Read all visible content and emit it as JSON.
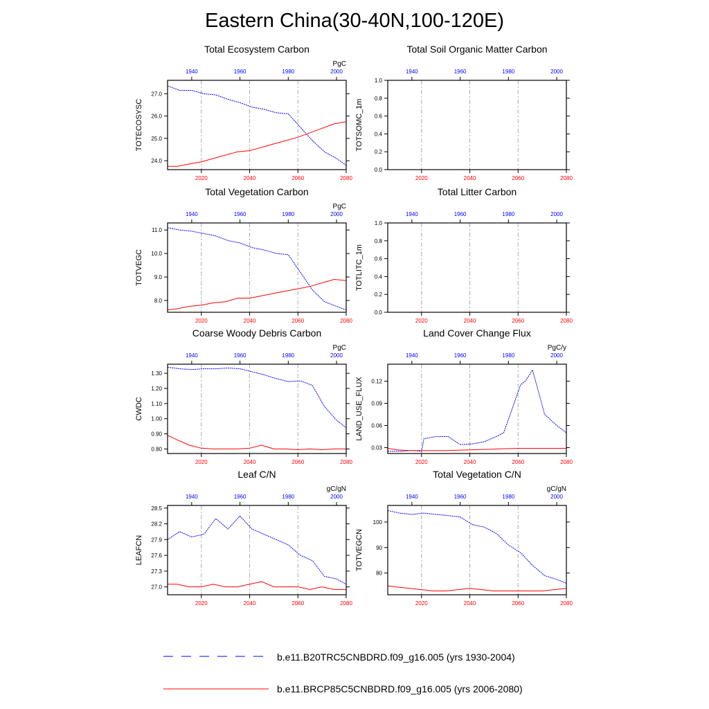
{
  "title": "Eastern China(30-40N,100-120E)",
  "colors": {
    "historical": "#0000ff",
    "future": "#ff0000",
    "axis": "#000000",
    "grid": "#aaaaaa"
  },
  "legend": [
    {
      "label": "b.e11.B20TRC5CNBDRD.f09_g16.005 (yrs 1930-2004)",
      "color": "#0000ff",
      "style": "dashed"
    },
    {
      "label": "b.e11.BRCP85C5CNBDRD.f09_g16.005 (yrs 2006-2080)",
      "color": "#ff0000",
      "style": "solid"
    }
  ],
  "chart_data": [
    {
      "type": "line",
      "title": "Total Ecosystem Carbon",
      "ylabel": "TOTECOSYSC",
      "units": "PgC",
      "ylim": [
        23.6,
        27.6
      ],
      "yticks": [
        "24.0",
        "25.0",
        "26.0",
        "27.0"
      ],
      "top_axis": {
        "range": [
          1930,
          2004
        ],
        "ticks": [
          "1940",
          "1960",
          "1980",
          "2000"
        ]
      },
      "bottom_axis": {
        "range": [
          2006,
          2080
        ],
        "ticks": [
          "2020",
          "2040",
          "2060",
          "2080"
        ]
      },
      "series": [
        {
          "name": "b.e11.B20TRC5CNBDRD.f09_g16.005 (yrs 1930-2004)",
          "axis": "top",
          "style": "dashed",
          "x": [
            1930,
            1935,
            1940,
            1945,
            1950,
            1955,
            1960,
            1965,
            1970,
            1975,
            1980,
            1985,
            1990,
            1995,
            2000,
            2004
          ],
          "values": [
            27.35,
            27.15,
            27.15,
            27.0,
            26.95,
            26.75,
            26.6,
            26.4,
            26.3,
            26.15,
            26.1,
            25.5,
            24.9,
            24.4,
            24.1,
            23.8
          ]
        },
        {
          "name": "b.e11.BRCP85C5CNBDRD.f09_g16.005 (yrs 2006-2080)",
          "axis": "bottom",
          "style": "solid",
          "x": [
            2006,
            2010,
            2015,
            2020,
            2025,
            2030,
            2035,
            2040,
            2045,
            2050,
            2055,
            2060,
            2065,
            2070,
            2075,
            2080
          ],
          "values": [
            23.75,
            23.75,
            23.85,
            23.95,
            24.1,
            24.25,
            24.4,
            24.45,
            24.6,
            24.75,
            24.9,
            25.05,
            25.25,
            25.45,
            25.65,
            25.75
          ]
        }
      ]
    },
    {
      "type": "line",
      "title": "Total Soil Organic Matter Carbon",
      "ylabel": "TOTSOMC_1m",
      "units": "",
      "ylim": [
        0,
        1
      ],
      "yticks": [
        "0.0",
        "0.2",
        "0.4",
        "0.6",
        "0.8",
        "1.0"
      ],
      "top_axis": {
        "range": [
          1930,
          2004
        ],
        "ticks": [
          "1940",
          "1960",
          "1980",
          "2000"
        ]
      },
      "bottom_axis": {
        "range": [
          2006,
          2080
        ],
        "ticks": [
          "2020",
          "2040",
          "2060",
          "2080"
        ]
      },
      "series": []
    },
    {
      "type": "line",
      "title": "Total Vegetation Carbon",
      "ylabel": "TOTVEGC",
      "units": "PgC",
      "ylim": [
        7.5,
        11.3
      ],
      "yticks": [
        "8.0",
        "9.0",
        "10.0",
        "11.0"
      ],
      "top_axis": {
        "range": [
          1930,
          2004
        ],
        "ticks": [
          "1940",
          "1960",
          "1980",
          "2000"
        ]
      },
      "bottom_axis": {
        "range": [
          2006,
          2080
        ],
        "ticks": [
          "2020",
          "2040",
          "2060",
          "2080"
        ]
      },
      "series": [
        {
          "name": "b.e11.B20TRC5CNBDRD.f09_g16.005 (yrs 1930-2004)",
          "axis": "top",
          "style": "dashed",
          "x": [
            1930,
            1935,
            1940,
            1945,
            1950,
            1955,
            1960,
            1965,
            1970,
            1975,
            1980,
            1985,
            1990,
            1995,
            2000,
            2004
          ],
          "values": [
            11.1,
            11.0,
            10.95,
            10.85,
            10.75,
            10.55,
            10.45,
            10.25,
            10.15,
            10.0,
            9.95,
            9.2,
            8.45,
            7.95,
            7.75,
            7.6
          ]
        },
        {
          "name": "b.e11.BRCP85C5CNBDRD.f09_g16.005 (yrs 2006-2080)",
          "axis": "bottom",
          "style": "solid",
          "x": [
            2006,
            2010,
            2015,
            2020,
            2025,
            2030,
            2035,
            2040,
            2045,
            2050,
            2055,
            2060,
            2065,
            2070,
            2075,
            2080
          ],
          "values": [
            7.6,
            7.65,
            7.75,
            7.8,
            7.9,
            7.95,
            8.1,
            8.1,
            8.2,
            8.3,
            8.4,
            8.5,
            8.6,
            8.75,
            8.9,
            8.85
          ]
        }
      ]
    },
    {
      "type": "line",
      "title": "Total Litter Carbon",
      "ylabel": "TOTLITC_1m",
      "units": "",
      "ylim": [
        0,
        1
      ],
      "yticks": [
        "0.0",
        "0.2",
        "0.4",
        "0.6",
        "0.8",
        "1.0"
      ],
      "top_axis": {
        "range": [
          1930,
          2004
        ],
        "ticks": [
          "1940",
          "1960",
          "1980",
          "2000"
        ]
      },
      "bottom_axis": {
        "range": [
          2006,
          2080
        ],
        "ticks": [
          "2020",
          "2040",
          "2060",
          "2080"
        ]
      },
      "series": []
    },
    {
      "type": "line",
      "title": "Coarse Woody Debris Carbon",
      "ylabel": "CWDC",
      "units": "PgC",
      "ylim": [
        0.77,
        1.36
      ],
      "yticks": [
        "0.80",
        "0.90",
        "1.00",
        "1.10",
        "1.20",
        "1.30"
      ],
      "top_axis": {
        "range": [
          1930,
          2004
        ],
        "ticks": [
          "1940",
          "1960",
          "1980",
          "2000"
        ]
      },
      "bottom_axis": {
        "range": [
          2006,
          2080
        ],
        "ticks": [
          "2020",
          "2040",
          "2060",
          "2080"
        ]
      },
      "series": [
        {
          "name": "b.e11.B20TRC5CNBDRD.f09_g16.005 (yrs 1930-2004)",
          "axis": "top",
          "style": "dashed",
          "x": [
            1930,
            1935,
            1940,
            1945,
            1950,
            1955,
            1960,
            1965,
            1970,
            1975,
            1980,
            1985,
            1990,
            1995,
            2000,
            2004
          ],
          "values": [
            1.34,
            1.33,
            1.325,
            1.33,
            1.33,
            1.335,
            1.33,
            1.31,
            1.29,
            1.265,
            1.245,
            1.25,
            1.22,
            1.08,
            0.99,
            0.94
          ]
        },
        {
          "name": "b.e11.BRCP85C5CNBDRD.f09_g16.005 (yrs 2006-2080)",
          "axis": "bottom",
          "style": "solid",
          "x": [
            2006,
            2010,
            2015,
            2020,
            2025,
            2030,
            2035,
            2040,
            2045,
            2050,
            2055,
            2060,
            2065,
            2070,
            2075,
            2080
          ],
          "values": [
            0.89,
            0.86,
            0.825,
            0.805,
            0.8,
            0.8,
            0.8,
            0.805,
            0.825,
            0.8,
            0.8,
            0.795,
            0.8,
            0.795,
            0.8,
            0.8
          ]
        }
      ]
    },
    {
      "type": "line",
      "title": "Land Cover Change Flux",
      "ylabel": "LAND_USE_FLUX",
      "units": "PgC/y",
      "ylim": [
        0.022,
        0.143
      ],
      "yticks": [
        "0.03",
        "0.06",
        "0.09",
        "0.12"
      ],
      "top_axis": {
        "range": [
          1930,
          2004
        ],
        "ticks": [
          "1940",
          "1960",
          "1980",
          "2000"
        ]
      },
      "bottom_axis": {
        "range": [
          2006,
          2080
        ],
        "ticks": [
          "2020",
          "2040",
          "2060",
          "2080"
        ]
      },
      "series": [
        {
          "name": "b.e11.B20TRC5CNBDRD.f09_g16.005 (yrs 1930-2004)",
          "axis": "top",
          "style": "dashed",
          "x": [
            1930,
            1935,
            1940,
            1944,
            1945,
            1950,
            1955,
            1960,
            1965,
            1970,
            1975,
            1978,
            1980,
            1985,
            1987,
            1988,
            1990,
            1995,
            2000,
            2004
          ],
          "values": [
            0.025,
            0.025,
            0.026,
            0.025,
            0.042,
            0.045,
            0.045,
            0.034,
            0.035,
            0.038,
            0.045,
            0.05,
            0.068,
            0.115,
            0.12,
            0.125,
            0.135,
            0.075,
            0.06,
            0.05
          ]
        },
        {
          "name": "b.e11.BRCP85C5CNBDRD.f09_g16.005 (yrs 2006-2080)",
          "axis": "bottom",
          "style": "solid",
          "x": [
            2006,
            2010,
            2015,
            2020,
            2030,
            2040,
            2050,
            2060,
            2070,
            2080
          ],
          "values": [
            0.029,
            0.027,
            0.026,
            0.026,
            0.026,
            0.027,
            0.028,
            0.029,
            0.029,
            0.029
          ]
        }
      ]
    },
    {
      "type": "line",
      "title": "Leaf C/N",
      "ylabel": "LEAFCN",
      "units": "gC/gN",
      "ylim": [
        26.85,
        28.55
      ],
      "yticks": [
        "27.0",
        "27.3",
        "27.6",
        "27.9",
        "28.2",
        "28.5"
      ],
      "top_axis": {
        "range": [
          1930,
          2004
        ],
        "ticks": [
          "1940",
          "1960",
          "1980",
          "2000"
        ]
      },
      "bottom_axis": {
        "range": [
          2006,
          2080
        ],
        "ticks": [
          "2020",
          "2040",
          "2060",
          "2080"
        ]
      },
      "series": [
        {
          "name": "b.e11.B20TRC5CNBDRD.f09_g16.005 (yrs 1930-2004)",
          "axis": "top",
          "style": "dashed",
          "x": [
            1930,
            1935,
            1940,
            1945,
            1950,
            1955,
            1960,
            1965,
            1970,
            1975,
            1980,
            1985,
            1990,
            1995,
            2000,
            2004
          ],
          "values": [
            27.9,
            28.05,
            27.95,
            28.0,
            28.3,
            28.1,
            28.35,
            28.1,
            28.0,
            27.9,
            27.8,
            27.6,
            27.5,
            27.2,
            27.15,
            27.05
          ]
        },
        {
          "name": "b.e11.BRCP85C5CNBDRD.f09_g16.005 (yrs 2006-2080)",
          "axis": "bottom",
          "style": "solid",
          "x": [
            2006,
            2010,
            2015,
            2020,
            2025,
            2030,
            2035,
            2040,
            2045,
            2050,
            2055,
            2060,
            2065,
            2070,
            2075,
            2080
          ],
          "values": [
            27.05,
            27.05,
            27.0,
            27.0,
            27.05,
            27.0,
            27.0,
            27.05,
            27.1,
            27.0,
            27.0,
            27.0,
            26.95,
            27.0,
            26.95,
            26.95
          ]
        }
      ]
    },
    {
      "type": "line",
      "title": "Total Vegetation C/N",
      "ylabel": "TOTVEGCN",
      "units": "gC/gN",
      "ylim": [
        71.5,
        106.5
      ],
      "yticks": [
        "80",
        "90",
        "100"
      ],
      "top_axis": {
        "range": [
          1930,
          2004
        ],
        "ticks": [
          "1940",
          "1960",
          "1980",
          "2000"
        ]
      },
      "bottom_axis": {
        "range": [
          2006,
          2080
        ],
        "ticks": [
          "2020",
          "2040",
          "2060",
          "2080"
        ]
      },
      "series": [
        {
          "name": "b.e11.B20TRC5CNBDRD.f09_g16.005 (yrs 1930-2004)",
          "axis": "top",
          "style": "dashed",
          "x": [
            1930,
            1935,
            1940,
            1945,
            1950,
            1955,
            1960,
            1965,
            1970,
            1975,
            1980,
            1985,
            1990,
            1995,
            2000,
            2004
          ],
          "values": [
            104.5,
            103.5,
            103.0,
            103.5,
            103.0,
            102.5,
            102.0,
            99.0,
            98.0,
            95.5,
            91.0,
            88.0,
            83.0,
            79.0,
            77.5,
            76.0
          ]
        },
        {
          "name": "b.e11.BRCP85C5CNBDRD.f09_g16.005 (yrs 2006-2080)",
          "axis": "bottom",
          "style": "solid",
          "x": [
            2006,
            2010,
            2015,
            2020,
            2025,
            2030,
            2035,
            2040,
            2045,
            2050,
            2055,
            2060,
            2065,
            2070,
            2075,
            2080
          ],
          "values": [
            75.0,
            74.5,
            74.0,
            73.5,
            73.0,
            73.0,
            73.5,
            74.0,
            73.5,
            73.0,
            73.0,
            73.0,
            73.0,
            73.0,
            73.5,
            74.0
          ]
        }
      ]
    }
  ]
}
